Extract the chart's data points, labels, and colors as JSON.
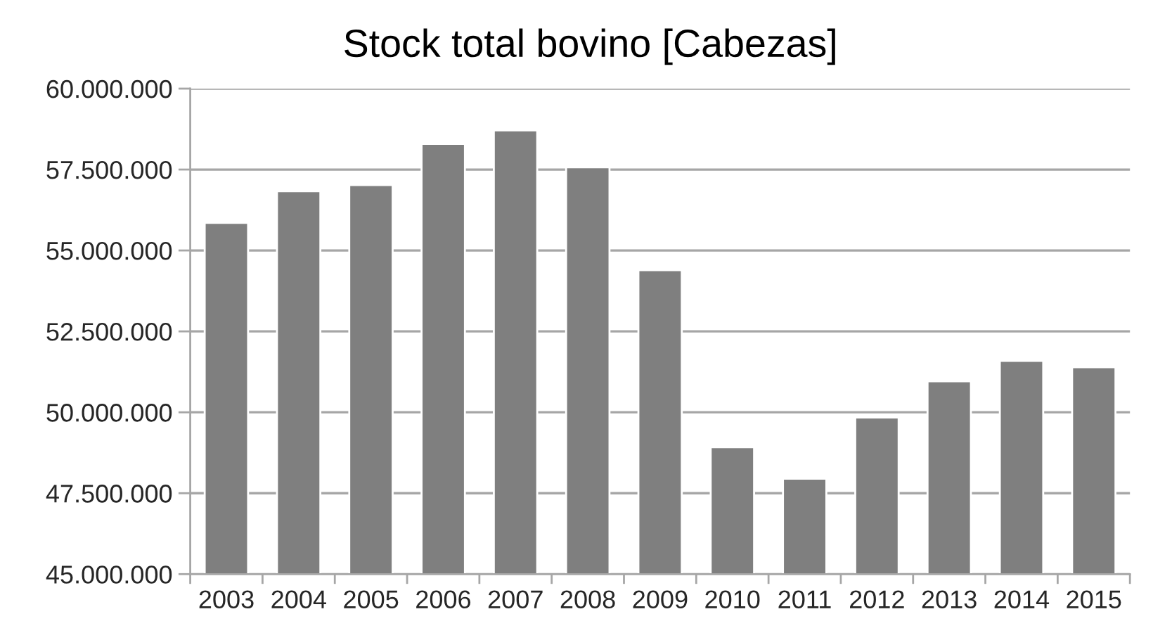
{
  "chart_data": {
    "type": "bar",
    "title": "Stock total bovino [Cabezas]",
    "categories": [
      "2003",
      "2004",
      "2005",
      "2006",
      "2007",
      "2008",
      "2009",
      "2010",
      "2011",
      "2012",
      "2013",
      "2014",
      "2015"
    ],
    "values": [
      55850000,
      56830000,
      57020000,
      58290000,
      58710000,
      57570000,
      54390000,
      48920000,
      47950000,
      49840000,
      50960000,
      51590000,
      51390000
    ],
    "color": "#7f7f7f",
    "ylim": [
      45000000,
      60000000
    ],
    "yticks": [
      {
        "value": 45000000,
        "label": "45.000.000"
      },
      {
        "value": 47500000,
        "label": "47.500.000"
      },
      {
        "value": 50000000,
        "label": "50.000.000"
      },
      {
        "value": 52500000,
        "label": "52.500.000"
      },
      {
        "value": 55000000,
        "label": "55.000.000"
      },
      {
        "value": 57500000,
        "label": "57.500.000"
      },
      {
        "value": 60000000,
        "label": "60.000.000"
      }
    ],
    "grid": "y"
  }
}
